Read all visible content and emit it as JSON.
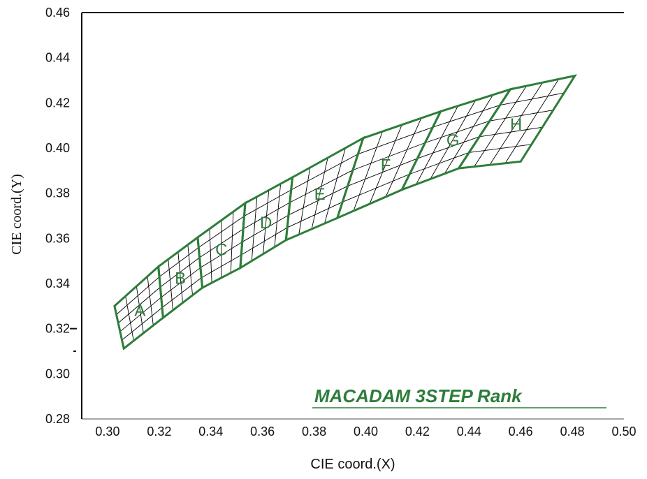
{
  "chart_data": {
    "type": "scatter",
    "title": "",
    "annotation": "MACADAM 3STEP Rank",
    "xlabel": "CIE coord.(X)",
    "ylabel": "CIE coord.(Y)",
    "xlim": [
      0.29,
      0.5
    ],
    "ylim": [
      0.28,
      0.46
    ],
    "xticks": [
      "0.30",
      "0.32",
      "0.34",
      "0.36",
      "0.38",
      "0.40",
      "0.42",
      "0.44",
      "0.46",
      "0.48",
      "0.50"
    ],
    "yticks": [
      "0.28",
      "0.30",
      "0.32",
      "0.34",
      "0.36",
      "0.38",
      "0.40",
      "0.42",
      "0.44",
      "0.46"
    ],
    "grid": false,
    "colors": {
      "bin_outline": "#2e7d3a",
      "grid_lines": "#000000"
    },
    "bins": [
      {
        "name": "A",
        "corners": [
          [
            0.3027,
            0.33
          ],
          [
            0.3197,
            0.3475
          ],
          [
            0.3215,
            0.3248
          ],
          [
            0.3063,
            0.3112
          ]
        ]
      },
      {
        "name": "B",
        "corners": [
          [
            0.3197,
            0.3475
          ],
          [
            0.3349,
            0.3604
          ],
          [
            0.3367,
            0.3381
          ],
          [
            0.3215,
            0.3248
          ]
        ]
      },
      {
        "name": "C",
        "corners": [
          [
            0.3349,
            0.3604
          ],
          [
            0.3533,
            0.3756
          ],
          [
            0.3514,
            0.3469
          ],
          [
            0.3367,
            0.3381
          ]
        ]
      },
      {
        "name": "D",
        "corners": [
          [
            0.3533,
            0.3756
          ],
          [
            0.3716,
            0.387
          ],
          [
            0.3691,
            0.3592
          ],
          [
            0.3514,
            0.3469
          ]
        ]
      },
      {
        "name": "E",
        "corners": [
          [
            0.3716,
            0.387
          ],
          [
            0.399,
            0.4044
          ],
          [
            0.389,
            0.369
          ],
          [
            0.3691,
            0.3592
          ]
        ]
      },
      {
        "name": "F",
        "corners": [
          [
            0.399,
            0.4044
          ],
          [
            0.429,
            0.4162
          ],
          [
            0.414,
            0.3815
          ],
          [
            0.389,
            0.369
          ]
        ]
      },
      {
        "name": "G",
        "corners": [
          [
            0.429,
            0.4162
          ],
          [
            0.456,
            0.426
          ],
          [
            0.436,
            0.391
          ],
          [
            0.414,
            0.3815
          ]
        ]
      },
      {
        "name": "H",
        "corners": [
          [
            0.456,
            0.426
          ],
          [
            0.481,
            0.432
          ],
          [
            0.46,
            0.394
          ],
          [
            0.436,
            0.391
          ]
        ]
      }
    ]
  }
}
